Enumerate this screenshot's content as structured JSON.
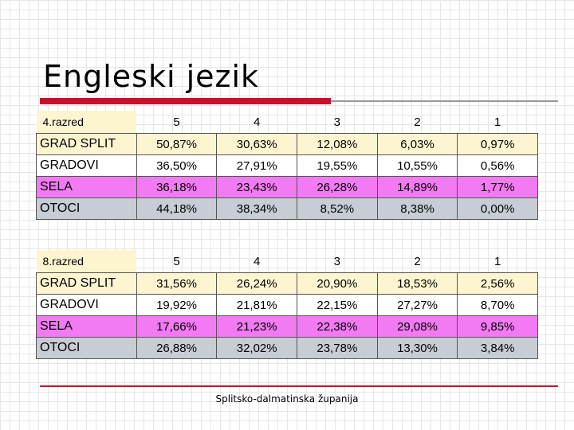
{
  "title": "Engleski jezik",
  "footer": "Splitsko-dalmatinska županija",
  "grades": [
    "5",
    "4",
    "3",
    "2",
    "1"
  ],
  "tables": [
    {
      "label": "4.razred",
      "rows": [
        {
          "name": "GRAD SPLIT",
          "values": [
            "50,87%",
            "30,63%",
            "12,08%",
            "6,03%",
            "0,97%"
          ]
        },
        {
          "name": "GRADOVI",
          "values": [
            "36,50%",
            "27,91%",
            "19,55%",
            "10,55%",
            "0,56%"
          ]
        },
        {
          "name": "SELA",
          "values": [
            "36,18%",
            "23,43%",
            "26,28%",
            "14,89%",
            "1,77%"
          ]
        },
        {
          "name": "OTOCI",
          "values": [
            "44,18%",
            "38,34%",
            "8,52%",
            "8,38%",
            "0,00%"
          ]
        }
      ]
    },
    {
      "label": "8.razred",
      "rows": [
        {
          "name": "GRAD SPLIT",
          "values": [
            "31,56%",
            "26,24%",
            "20,90%",
            "18,53%",
            "2,56%"
          ]
        },
        {
          "name": "GRADOVI",
          "values": [
            "19,92%",
            "21,81%",
            "22,15%",
            "27,27%",
            "8,70%"
          ]
        },
        {
          "name": "SELA",
          "values": [
            "17,66%",
            "21,23%",
            "22,38%",
            "29,08%",
            "9,85%"
          ]
        },
        {
          "name": "OTOCI",
          "values": [
            "26,88%",
            "32,02%",
            "23,78%",
            "13,30%",
            "3,84%"
          ]
        }
      ]
    }
  ],
  "colors": {
    "title_bar": "#c8102e",
    "grad_split": "#fdf5d0",
    "gradovi": "#ffffff",
    "sela": "#f27af2",
    "otoci": "#c8ccd4"
  }
}
